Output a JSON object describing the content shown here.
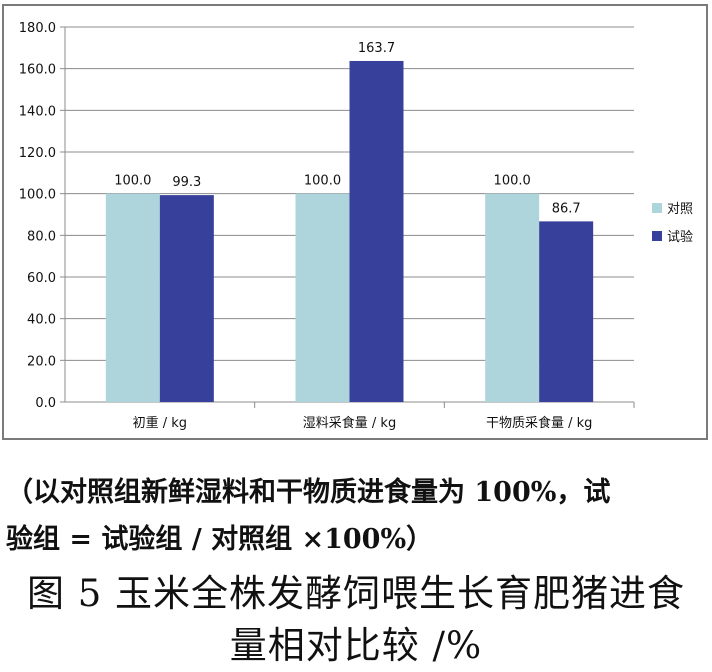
{
  "chart_data": {
    "type": "bar",
    "categories": [
      "初重 / kg",
      "湿料采食量 / kg",
      "干物质采食量 / kg"
    ],
    "series": [
      {
        "name": "对照",
        "values": [
          100.0,
          100.0,
          100.0
        ],
        "data_labels": [
          "100.0",
          "100.0",
          "100.0"
        ],
        "color": "#aed5db"
      },
      {
        "name": "试验",
        "values": [
          99.3,
          163.7,
          86.7
        ],
        "data_labels": [
          "99.3",
          "163.7",
          "86.7"
        ],
        "color": "#37409a"
      }
    ],
    "ylim": [
      0,
      180
    ],
    "yticks": [
      "0.0",
      "20.0",
      "40.0",
      "60.0",
      "80.0",
      "100.0",
      "120.0",
      "140.0",
      "160.0",
      "180.0"
    ],
    "grid": true,
    "legend": "right"
  },
  "note": {
    "line1": "（以对照组新鲜湿料和干物质进食量为 100%，试",
    "line2": "验组 = 试验组 / 对照组 ×100%）"
  },
  "caption": {
    "line1": "图 5  玉米全株发酵饲喂生长育肥猪进食",
    "line2": "量相对比较 /%"
  }
}
